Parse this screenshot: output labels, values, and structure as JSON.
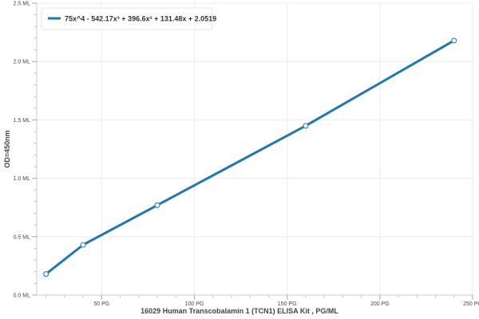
{
  "chart_data": {
    "type": "line",
    "title": "",
    "xlabel": "16029 Human Transcobalamin 1 (TCN1) ELISA Kit , PG/ML",
    "ylabel": "OD=450nm",
    "xlim": [
      15,
      250
    ],
    "ylim": [
      0,
      2.5
    ],
    "x_ticks": [
      50,
      100,
      150,
      200,
      250
    ],
    "x_tick_labels": [
      "50 PG",
      "100 PG",
      "150 PG",
      "200 PG",
      "250 PG"
    ],
    "y_ticks": [
      0,
      0.5,
      1.0,
      1.5,
      2.0,
      2.5
    ],
    "y_tick_labels": [
      "0.0 ML",
      "0.5 ML",
      "1.0 ML",
      "1.5 ML",
      "2.0 ML",
      "2.5 ML"
    ],
    "grid": true,
    "legend_position": "top-left",
    "series": [
      {
        "name": "75x^4 - 542.17x³ + 396.6x² + 131.48x + 2.0519",
        "color": "#1f77b4",
        "marker_color": "#ffffff",
        "x": [
          20,
          40,
          80,
          160,
          240
        ],
        "y": [
          0.18,
          0.43,
          0.77,
          1.45,
          2.18
        ]
      }
    ]
  }
}
